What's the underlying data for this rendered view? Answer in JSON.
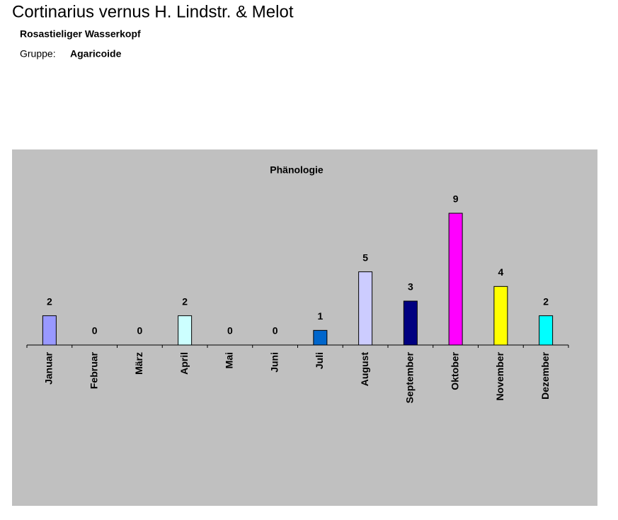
{
  "header": {
    "title": "Cortinarius vernus H. Lindstr. & Melot",
    "subtitle": "Rosastieliger Wasserkopf",
    "group_label": "Gruppe:",
    "group": "Agaricoide"
  },
  "chart_data": {
    "type": "bar",
    "title": "Phänologie",
    "categories": [
      "Januar",
      "Februar",
      "März",
      "April",
      "Mai",
      "Juni",
      "Juli",
      "August",
      "September",
      "Oktober",
      "November",
      "Dezember"
    ],
    "values": [
      2,
      0,
      0,
      2,
      0,
      0,
      1,
      5,
      3,
      9,
      4,
      2
    ],
    "colors": [
      "#9999ff",
      "#993366",
      "#ffffcc",
      "#ccffff",
      "#660066",
      "#ff8080",
      "#0066cc",
      "#ccccff",
      "#000080",
      "#ff00ff",
      "#ffff00",
      "#00ffff"
    ]
  }
}
